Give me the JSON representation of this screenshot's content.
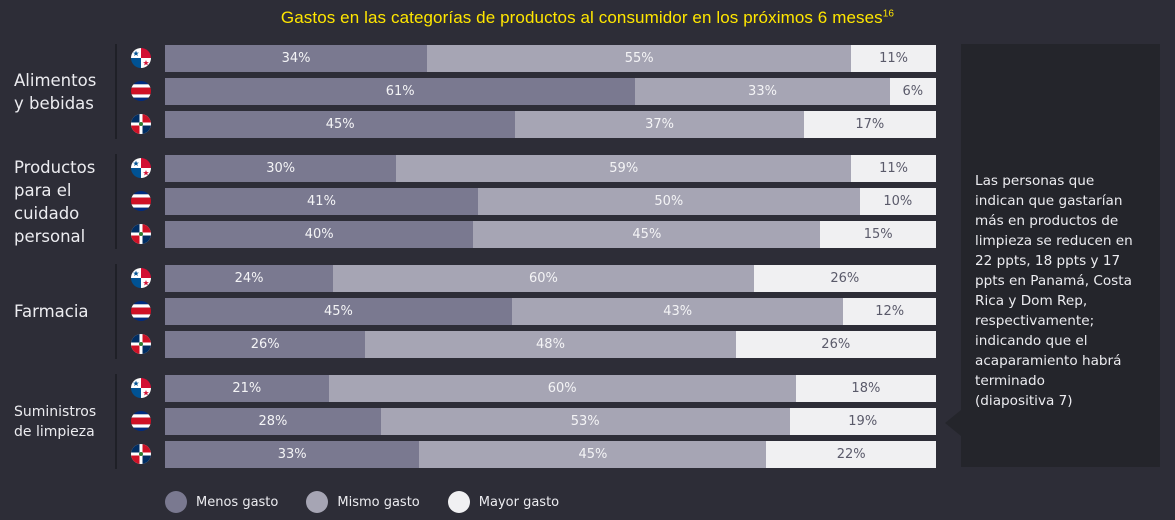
{
  "chart_data": {
    "type": "bar",
    "orientation": "horizontal",
    "stacked": true,
    "title": "Gastos en las categorías de productos al consumidor en los próximos 6 meses",
    "title_superscript": "16",
    "series_names": [
      "Menos gasto",
      "Mismo gasto",
      "Mayor gasto"
    ],
    "series_colors": [
      "#7a7990",
      "#a6a5b4",
      "#f0f0f2"
    ],
    "countries": [
      "Panamá",
      "Costa Rica",
      "Dom Rep"
    ],
    "value_suffix": "%",
    "groups": [
      {
        "category": "Alimentos y bebidas",
        "rows": [
          {
            "country": "Panamá",
            "flag": "panama-flag",
            "values": [
              34,
              55,
              11
            ]
          },
          {
            "country": "Costa Rica",
            "flag": "costa-rica-flag",
            "values": [
              61,
              33,
              6
            ]
          },
          {
            "country": "Dom Rep",
            "flag": "dominican-republic-flag",
            "values": [
              45,
              37,
              17
            ]
          }
        ]
      },
      {
        "category": "Productos para el cuidado personal",
        "rows": [
          {
            "country": "Panamá",
            "flag": "panama-flag",
            "values": [
              30,
              59,
              11
            ]
          },
          {
            "country": "Costa Rica",
            "flag": "costa-rica-flag",
            "values": [
              41,
              50,
              10
            ]
          },
          {
            "country": "Dom Rep",
            "flag": "dominican-republic-flag",
            "values": [
              40,
              45,
              15
            ]
          }
        ]
      },
      {
        "category": "Farmacia",
        "rows": [
          {
            "country": "Panamá",
            "flag": "panama-flag",
            "values": [
              24,
              60,
              26
            ]
          },
          {
            "country": "Costa Rica",
            "flag": "costa-rica-flag",
            "values": [
              45,
              43,
              12
            ]
          },
          {
            "country": "Dom Rep",
            "flag": "dominican-republic-flag",
            "values": [
              26,
              48,
              26
            ]
          }
        ]
      },
      {
        "category": "Suministros de limpieza",
        "rows": [
          {
            "country": "Panamá",
            "flag": "panama-flag",
            "values": [
              21,
              60,
              18
            ]
          },
          {
            "country": "Costa Rica",
            "flag": "costa-rica-flag",
            "values": [
              28,
              53,
              19
            ]
          },
          {
            "country": "Dom Rep",
            "flag": "dominican-republic-flag",
            "values": [
              33,
              45,
              22
            ]
          }
        ]
      }
    ],
    "legend_position": "bottom-left"
  },
  "labels": {
    "title": "Gastos en las categorías de productos al consumidor en los próximos 6 meses",
    "title_sup": "16",
    "group_label_lines": [
      [
        "Alimentos",
        "y bebidas"
      ],
      [
        "Productos",
        "para el",
        "cuidado",
        "personal"
      ],
      [
        "Farmacia"
      ],
      [
        "Suministros",
        "de limpieza"
      ]
    ],
    "legend": [
      "Menos gasto",
      "Mismo gasto",
      "Mayor gasto"
    ]
  },
  "callout": {
    "lines": [
      "Las personas que",
      "indican que gastarían",
      "más en productos de",
      "limpieza se reducen en",
      "22 ppts, 18 ppts y 17",
      "ppts en Panamá, Costa",
      "Rica y Dom Rep,",
      "respectivamente;",
      "indicando que el",
      "acaparamiento habrá",
      "terminado",
      "(diapositiva 7)"
    ]
  }
}
